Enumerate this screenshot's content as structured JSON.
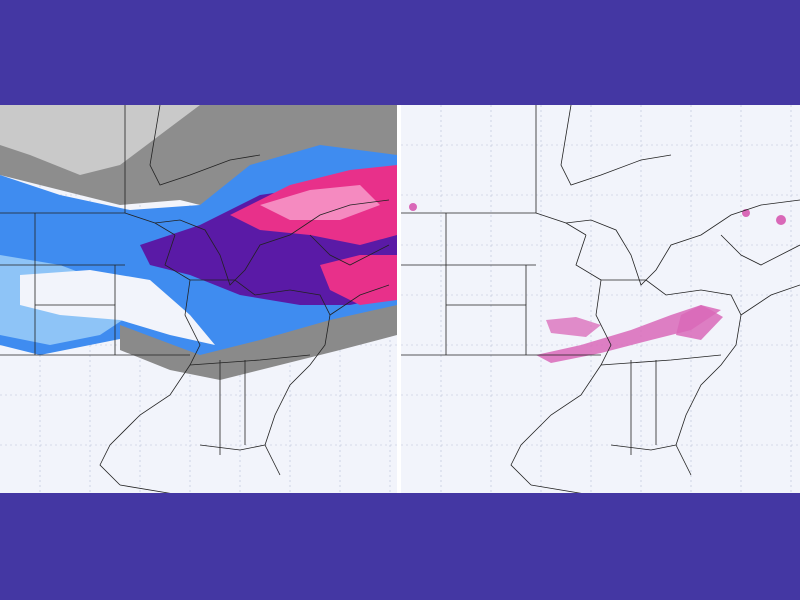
{
  "colors": {
    "background": "#4437a3",
    "map_base": "#f2f4fb",
    "boundary": "#222222",
    "grid": "#b8bfd6",
    "gray_dark": "#7a7a7a",
    "gray_mid": "#9a9a9a",
    "gray_light": "#c8c8c8",
    "blue": "#3f8cf0",
    "light_blue": "#8ec4f7",
    "purple": "#5a1aa6",
    "magenta": "#e8308a",
    "pink": "#f58ac0",
    "ice_pink": "#d968b8"
  },
  "panels": [
    {
      "id": "left",
      "content": "snowfall-forecast-map"
    },
    {
      "id": "right",
      "content": "freezing-rain-forecast-map"
    }
  ]
}
